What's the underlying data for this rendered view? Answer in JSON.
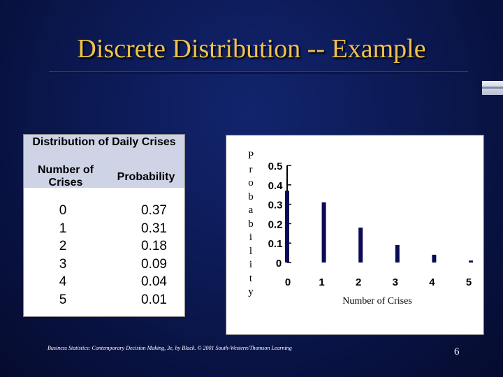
{
  "slide": {
    "title": "Discrete Distribution -- Example",
    "footer": "Business Statistics: Contemporary Decision Making, 3e, by Black. © 2001 South-Western/Thomson Learning",
    "page_number": "6"
  },
  "table": {
    "title": "Distribution of Daily Crises",
    "col1_header": "Number of Crises",
    "col2_header": "Probability",
    "rows": [
      {
        "count": "0",
        "prob": "0.37"
      },
      {
        "count": "1",
        "prob": "0.31"
      },
      {
        "count": "2",
        "prob": "0.18"
      },
      {
        "count": "3",
        "prob": "0.09"
      },
      {
        "count": "4",
        "prob": "0.04"
      },
      {
        "count": "5",
        "prob": "0.01"
      }
    ]
  },
  "chart_data": {
    "type": "bar",
    "categories": [
      "0",
      "1",
      "2",
      "3",
      "4",
      "5"
    ],
    "values": [
      0.37,
      0.31,
      0.18,
      0.09,
      0.04,
      0.01
    ],
    "title": "",
    "xlabel": "Number of Crises",
    "ylabel": "Probability",
    "ylim": [
      0,
      0.5
    ],
    "y_ticks": [
      "0",
      "0.1",
      "0.2",
      "0.3",
      "0.4",
      "0.5"
    ],
    "bar_color": "#0b0b55",
    "grid": false,
    "legend": "none"
  }
}
